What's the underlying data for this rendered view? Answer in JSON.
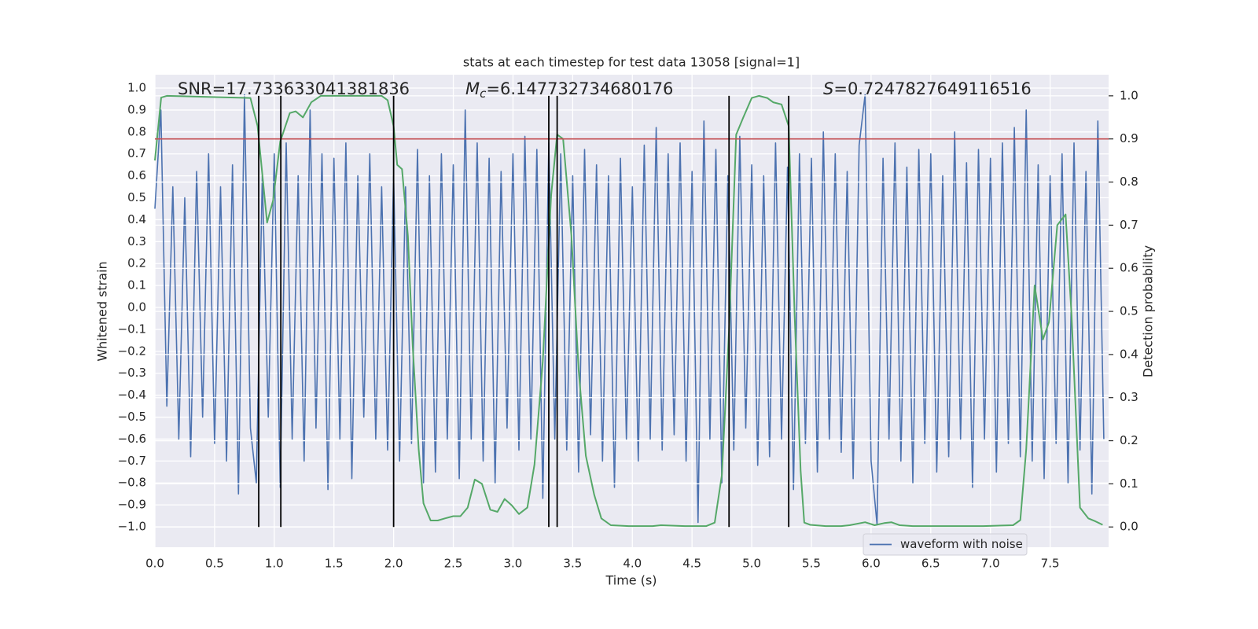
{
  "chart_data": {
    "type": "line",
    "title": "stats at each timestep for test data 13058 [signal=1]",
    "xlabel": "Time (s)",
    "ylabel": "Whitened strain",
    "y2label": "Detection probability",
    "annotations": [
      {
        "text": "SNR=17.733633041381836"
      },
      {
        "symbol": "M",
        "subscript": "c",
        "text": "=6.147732734680176"
      },
      {
        "symbol": "S",
        "text": "=0.7247827649116516"
      }
    ],
    "xlim": [
      0,
      7.99
    ],
    "ylim": [
      -1.093,
      1.061
    ],
    "y2lim": [
      -0.047,
      1.049
    ],
    "xticks": [
      {
        "value": 0,
        "label": "0.0"
      },
      0.5,
      {
        "value": 1,
        "label": "1.0"
      },
      1.5,
      {
        "value": 2,
        "label": "2.0"
      },
      2.5,
      {
        "value": 3,
        "label": "3.0"
      },
      3.5,
      {
        "value": 4,
        "label": "4.0"
      },
      4.5,
      {
        "value": 5,
        "label": "5.0"
      },
      5.5,
      {
        "value": 6,
        "label": "6.0"
      },
      6.5,
      {
        "value": 7,
        "label": "7.0"
      },
      7.5
    ],
    "yticks": [
      {
        "value": -1,
        "label": "−1.0"
      },
      {
        "value": -0.9,
        "label": "−0.9"
      },
      {
        "value": -0.8,
        "label": "−0.8"
      },
      {
        "value": -0.7,
        "label": "−0.7"
      },
      {
        "value": -0.6,
        "label": "−0.6"
      },
      {
        "value": -0.5,
        "label": "−0.5"
      },
      {
        "value": -0.4,
        "label": "−0.4"
      },
      {
        "value": -0.3,
        "label": "−0.3"
      },
      {
        "value": -0.2,
        "label": "−0.2"
      },
      {
        "value": -0.1,
        "label": "−0.1"
      },
      {
        "value": 0,
        "label": "0.0"
      },
      0.1,
      0.2,
      0.3,
      0.4,
      0.5,
      0.6,
      0.7,
      0.8,
      0.9,
      {
        "value": 1,
        "label": "1.0"
      }
    ],
    "y2ticks": [
      {
        "value": 0,
        "label": "0.0"
      },
      0.1,
      0.2,
      0.3,
      0.4,
      0.5,
      0.6,
      0.7,
      0.8,
      0.9,
      {
        "value": 1,
        "label": "1.0"
      }
    ],
    "grid": true,
    "legend": "lower right",
    "series": [
      {
        "name": "waveform with noise",
        "color": "#4c72b0",
        "x": [
          0,
          0.05,
          0.1,
          0.15,
          0.2,
          0.25,
          0.3,
          0.35,
          0.4,
          0.45,
          0.5,
          0.55,
          0.6,
          0.65,
          0.7,
          0.75,
          0.8,
          0.85,
          0.9,
          0.95,
          1,
          1.05,
          1.1,
          1.15,
          1.2,
          1.25,
          1.3,
          1.35,
          1.4,
          1.45,
          1.5,
          1.55,
          1.6,
          1.65,
          1.7,
          1.75,
          1.8,
          1.85,
          1.9,
          1.95,
          2,
          2.05,
          2.1,
          2.15,
          2.2,
          2.25,
          2.3,
          2.35,
          2.4,
          2.45,
          2.5,
          2.55,
          2.6,
          2.65,
          2.7,
          2.75,
          2.8,
          2.85,
          2.9,
          2.95,
          3,
          3.05,
          3.1,
          3.15,
          3.2,
          3.25,
          3.3,
          3.35,
          3.4,
          3.45,
          3.5,
          3.55,
          3.6,
          3.65,
          3.7,
          3.75,
          3.8,
          3.85,
          3.9,
          3.95,
          4,
          4.05,
          4.1,
          4.15,
          4.2,
          4.25,
          4.3,
          4.35,
          4.4,
          4.45,
          4.5,
          4.55,
          4.6,
          4.65,
          4.7,
          4.75,
          4.8,
          4.85,
          4.9,
          4.95,
          5,
          5.05,
          5.1,
          5.15,
          5.2,
          5.25,
          5.3,
          5.35,
          5.4,
          5.45,
          5.5,
          5.55,
          5.6,
          5.65,
          5.7,
          5.75,
          5.8,
          5.85,
          5.9,
          5.95,
          6,
          6.05,
          6.1,
          6.15,
          6.2,
          6.25,
          6.3,
          6.35,
          6.4,
          6.45,
          6.5,
          6.55,
          6.6,
          6.65,
          6.7,
          6.75,
          6.8,
          6.85,
          6.9,
          6.95,
          7,
          7.05,
          7.1,
          7.15,
          7.2,
          7.25,
          7.3,
          7.35,
          7.4,
          7.45,
          7.5,
          7.55,
          7.6,
          7.65,
          7.7,
          7.75,
          7.8,
          7.85,
          7.9,
          7.95
        ],
        "values": [
          0.45,
          0.9,
          -0.45,
          0.55,
          -0.6,
          0.5,
          -0.68,
          0.62,
          -0.5,
          0.7,
          -0.62,
          0.55,
          -0.7,
          0.65,
          -0.85,
          0.97,
          -0.55,
          -0.8,
          0.6,
          -0.5,
          0.7,
          -0.82,
          0.75,
          -0.6,
          0.6,
          -0.7,
          0.9,
          -0.55,
          0.7,
          -0.83,
          0.68,
          -0.6,
          0.75,
          -0.78,
          0.6,
          -0.5,
          0.7,
          -0.6,
          0.55,
          -0.65,
          0.6,
          -0.7,
          0.55,
          -0.62,
          0.72,
          -0.8,
          0.6,
          -0.75,
          0.7,
          -0.6,
          0.65,
          -0.78,
          0.9,
          -0.6,
          0.75,
          -0.7,
          0.68,
          -0.8,
          0.62,
          -0.55,
          0.7,
          -0.65,
          0.78,
          -0.6,
          0.72,
          -0.87,
          0.75,
          -0.6,
          0.7,
          -0.65,
          0.6,
          -0.75,
          0.72,
          -0.58,
          0.65,
          -0.7,
          0.6,
          -0.82,
          0.68,
          -0.6,
          0.55,
          -0.7,
          0.74,
          -0.6,
          0.82,
          -0.65,
          0.7,
          -0.58,
          0.75,
          -0.7,
          0.62,
          -0.98,
          0.85,
          -0.6,
          0.72,
          -0.8,
          0.6,
          -0.65,
          0.78,
          -0.55,
          0.65,
          -0.72,
          0.6,
          -0.68,
          0.75,
          -0.6,
          0.64,
          -0.83,
          0.7,
          -0.62,
          0.68,
          -0.75,
          0.8,
          -0.6,
          0.7,
          -0.66,
          0.62,
          -0.78,
          0.74,
          0.97,
          -0.7,
          -0.99,
          0.68,
          -0.6,
          0.75,
          -0.7,
          0.64,
          -0.8,
          0.72,
          -0.62,
          0.7,
          -0.75,
          0.6,
          -0.68,
          0.8,
          -0.6,
          0.66,
          -0.82,
          0.72,
          -0.6,
          0.68,
          -0.75,
          0.75,
          -0.62,
          0.82,
          -0.68,
          0.9,
          -0.7,
          0.65,
          -0.78,
          0.6,
          -0.62,
          0.7,
          -0.8,
          0.75,
          -0.65,
          0.62,
          -0.85,
          0.85,
          -0.6
        ]
      },
      {
        "color": "#55a868",
        "axis": "y2",
        "x": [
          0,
          0.053,
          0.1,
          0.8,
          0.86,
          0.94,
          0.99,
          1.05,
          1.13,
          1.18,
          1.24,
          1.31,
          1.39,
          1.9,
          1.95,
          2,
          2.03,
          2.07,
          2.12,
          2.16,
          2.21,
          2.25,
          2.31,
          2.37,
          2.43,
          2.5,
          2.56,
          2.62,
          2.68,
          2.74,
          2.81,
          2.87,
          2.93,
          2.99,
          3.05,
          3.12,
          3.18,
          3.25,
          3.32,
          3.37,
          3.42,
          3.49,
          3.55,
          3.61,
          3.68,
          3.74,
          3.82,
          3.97,
          4.17,
          4.24,
          4.44,
          4.62,
          4.69,
          4.75,
          4.81,
          4.87,
          4.93,
          5,
          5.06,
          5.13,
          5.18,
          5.25,
          5.31,
          5.36,
          5.41,
          5.44,
          5.49,
          5.62,
          5.75,
          5.82,
          5.95,
          6.03,
          6.11,
          6.17,
          6.24,
          6.35,
          6.61,
          6.94,
          7.19,
          7.25,
          7.3,
          7.37,
          7.44,
          7.49,
          7.56,
          7.63,
          7.68,
          7.75,
          7.82,
          7.88,
          7.94
        ],
        "values": [
          0.85,
          0.996,
          1.0,
          0.995,
          0.93,
          0.706,
          0.757,
          0.894,
          0.96,
          0.964,
          0.95,
          0.985,
          1.0,
          1.0,
          0.99,
          0.93,
          0.84,
          0.83,
          0.675,
          0.42,
          0.18,
          0.055,
          0.015,
          0.015,
          0.02,
          0.025,
          0.025,
          0.045,
          0.11,
          0.1,
          0.04,
          0.035,
          0.065,
          0.05,
          0.03,
          0.045,
          0.145,
          0.385,
          0.77,
          0.91,
          0.9,
          0.675,
          0.365,
          0.165,
          0.075,
          0.02,
          0.004,
          0.002,
          0.002,
          0.004,
          0.002,
          0.002,
          0.01,
          0.12,
          0.455,
          0.91,
          0.95,
          0.995,
          1.0,
          0.995,
          0.985,
          0.98,
          0.93,
          0.49,
          0.13,
          0.01,
          0.005,
          0.002,
          0.002,
          0.004,
          0.011,
          0.004,
          0.009,
          0.011,
          0.004,
          0.002,
          0.002,
          0.002,
          0.004,
          0.016,
          0.18,
          0.56,
          0.435,
          0.475,
          0.7,
          0.725,
          0.49,
          0.045,
          0.02,
          0.013,
          0.005
        ]
      }
    ],
    "hline": {
      "value": 0.9,
      "axis": "y2",
      "color": "#c44e52"
    },
    "vlines": {
      "x": [
        0.87,
        1.055,
        2.0,
        3.3,
        3.37,
        4.81,
        5.31
      ],
      "ylim2": [
        0,
        1
      ],
      "color": "#000000"
    }
  }
}
